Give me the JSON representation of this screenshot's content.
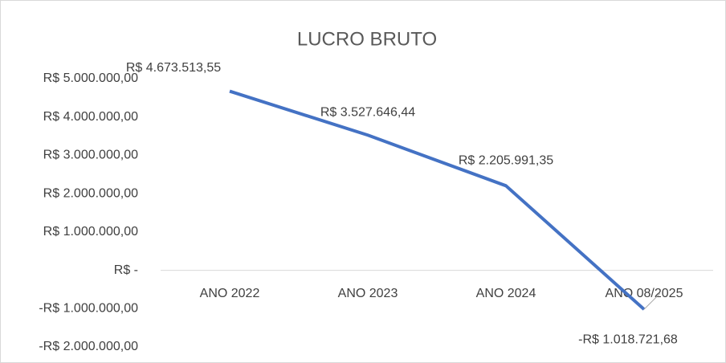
{
  "chart_data": {
    "type": "line",
    "title": "LUCRO BRUTO",
    "categories": [
      "ANO 2022",
      "ANO 2023",
      "ANO 2024",
      "ANO 08/2025"
    ],
    "series": [
      {
        "name": "LUCRO BRUTO",
        "color": "#4472c4",
        "values": [
          4673513.55,
          3527646.44,
          2205991.35,
          -1018721.68
        ],
        "value_labels": [
          "R$ 4.673.513,55",
          "R$ 3.527.646,44",
          "R$ 2.205.991,35",
          "-R$ 1.018.721,68"
        ]
      }
    ],
    "ylim": [
      -2000000,
      5000000
    ],
    "yticks": [
      {
        "value": -2000000,
        "label": "-R$ 2.000.000,00"
      },
      {
        "value": -1000000,
        "label": "-R$ 1.000.000,00"
      },
      {
        "value": 0,
        "label": "R$ -"
      },
      {
        "value": 1000000,
        "label": "R$ 1.000.000,00"
      },
      {
        "value": 2000000,
        "label": "R$ 2.000.000,00"
      },
      {
        "value": 3000000,
        "label": "R$ 3.000.000,00"
      },
      {
        "value": 4000000,
        "label": "R$ 4.000.000,00"
      },
      {
        "value": 5000000,
        "label": "R$ 5.000.000,00"
      }
    ],
    "grid": false
  }
}
